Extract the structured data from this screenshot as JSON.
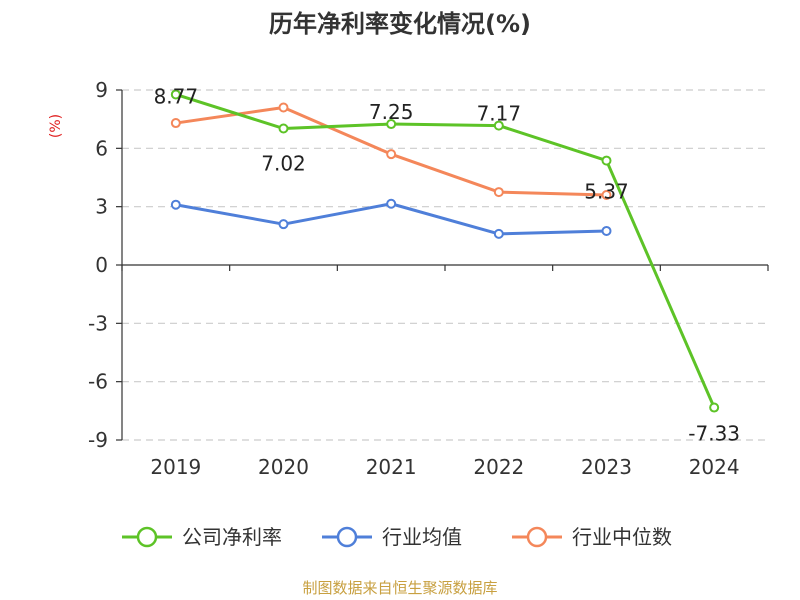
{
  "chart_data": {
    "type": "line",
    "title": "历年净利率变化情况(%)",
    "ylabel": "(%)",
    "categories": [
      "2019",
      "2020",
      "2021",
      "2022",
      "2023",
      "2024"
    ],
    "yticks": [
      "9",
      "6",
      "3",
      "0",
      "-3",
      "-6",
      "-9"
    ],
    "ylim": [
      -9,
      9
    ],
    "grid": true,
    "legend_position": "bottom",
    "series": [
      {
        "name": "公司净利率",
        "color": "#5dc327",
        "values": [
          8.77,
          7.02,
          7.25,
          7.17,
          5.37,
          -7.33
        ],
        "labels": [
          "8.77",
          "7.02",
          "7.25",
          "7.17",
          "5.37",
          "-7.33"
        ]
      },
      {
        "name": "行业均值",
        "color": "#4f7fd9",
        "values": [
          3.1,
          2.1,
          3.15,
          1.6,
          1.75,
          null
        ]
      },
      {
        "name": "行业中位数",
        "color": "#f4875a",
        "values": [
          7.3,
          8.1,
          5.7,
          3.75,
          3.6,
          null
        ]
      }
    ]
  },
  "unit_color": "#e02020",
  "source_text": "制图数据来自恒生聚源数据库",
  "source_color": "#c8a040"
}
